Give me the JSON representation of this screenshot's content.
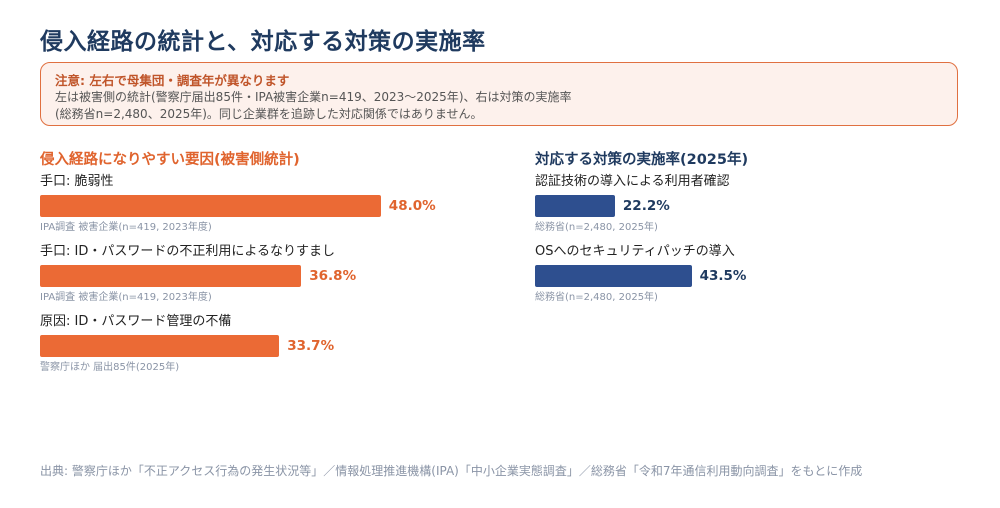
{
  "title": "侵入経路の統計と、対応する対策の実施率",
  "note": {
    "heading": "注意: 左右で母集団・調査年が異なります",
    "line1": "左は被害側の統計(警察庁届出85件・IPA被害企業n=419、2023〜2025年)、右は対策の実施率",
    "line2": "(総務省n=2,480、2025年)。同じ企業群を追跡した対応関係ではありません。"
  },
  "colors": {
    "left_bar": "#eb6a35",
    "right_bar": "#2e4f8f",
    "left_text": "#e0642e",
    "right_text": "#1f3a5f"
  },
  "chart_data": [
    {
      "type": "bar",
      "orientation": "horizontal",
      "title": "侵入経路になりやすい要因(被害側統計)",
      "xlim": [
        0,
        100
      ],
      "unit": "%",
      "items": [
        {
          "label": "手口: 脆弱性",
          "value": 48.0,
          "value_label": "48.0%",
          "source": "IPA調査 被害企業(n=419, 2023年度)"
        },
        {
          "label": "手口: ID・パスワードの不正利用によるなりすまし",
          "value": 36.8,
          "value_label": "36.8%",
          "source": "IPA調査 被害企業(n=419, 2023年度)"
        },
        {
          "label": "原因: ID・パスワード管理の不備",
          "value": 33.7,
          "value_label": "33.7%",
          "source": "警察庁ほか 届出85件(2025年)"
        }
      ]
    },
    {
      "type": "bar",
      "orientation": "horizontal",
      "title": "対応する対策の実施率(2025年)",
      "xlim": [
        0,
        100
      ],
      "unit": "%",
      "items": [
        {
          "label": "認証技術の導入による利用者確認",
          "value": 22.2,
          "value_label": "22.2%",
          "source": "総務省(n=2,480, 2025年)"
        },
        {
          "label": "OSへのセキュリティパッチの導入",
          "value": 43.5,
          "value_label": "43.5%",
          "source": "総務省(n=2,480, 2025年)"
        }
      ]
    }
  ],
  "footer": "出典: 警察庁ほか「不正アクセス行為の発生状況等」／情報処理推進機構(IPA)「中小企業実態調査」／総務省「令和7年通信利用動向調査」をもとに作成"
}
